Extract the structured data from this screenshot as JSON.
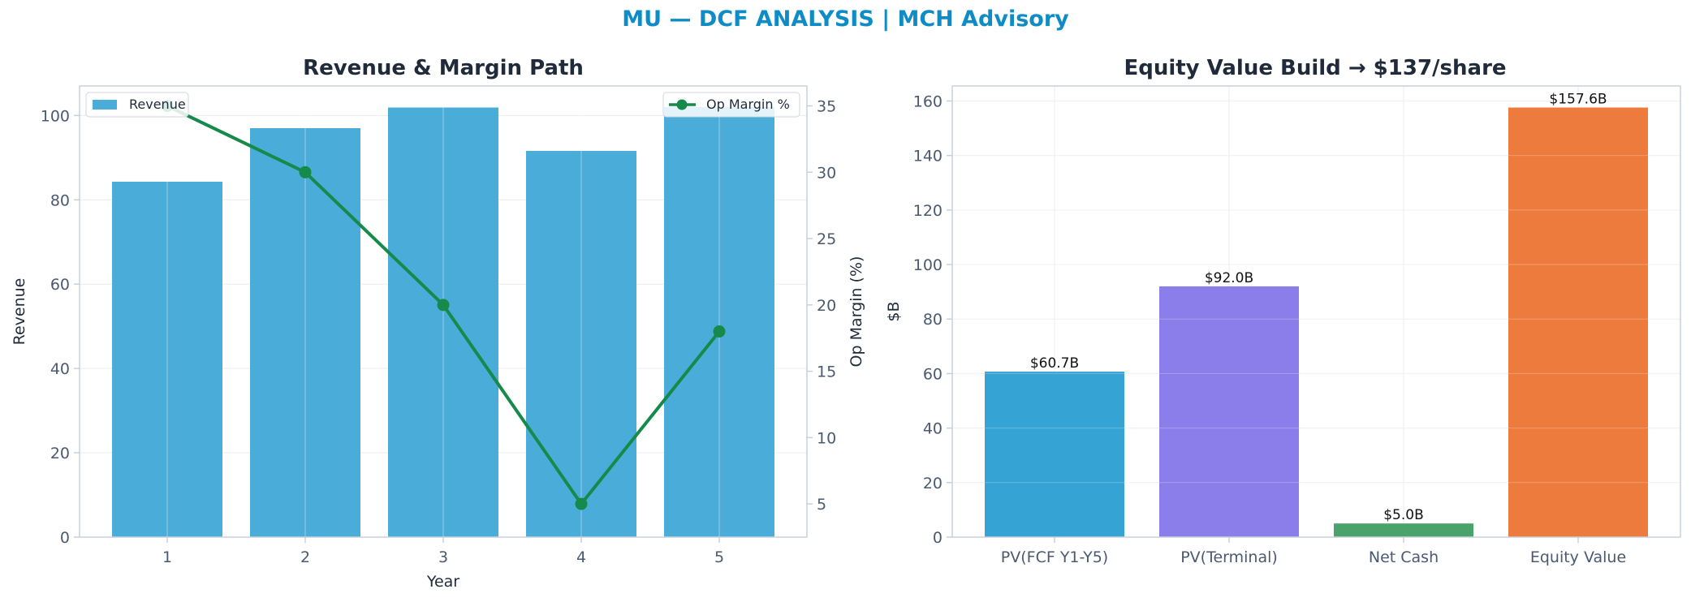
{
  "figure": {
    "suptitle": "MU — DCF ANALYSIS | MCH Advisory"
  },
  "colors": {
    "title": "#0f8cc6",
    "axis_title": "#1f2a3a",
    "tick": "#4a5a70",
    "label": "#1f2a3a",
    "spine": "#c8d0dc",
    "grid": "#e8ecf2",
    "revenue_bar": "#4aacd8",
    "margin_line": "#168a4a"
  },
  "chart_data": [
    {
      "type": "bar",
      "title": "Revenue & Margin Path",
      "xlabel": "Year",
      "ylabel": "Revenue",
      "y2label": "Op Margin (%)",
      "categories": [
        "1",
        "2",
        "3",
        "4",
        "5"
      ],
      "ylim": [
        0,
        107
      ],
      "yticks": [
        0,
        20,
        40,
        60,
        80,
        100
      ],
      "y2lim": [
        2.5,
        36.5
      ],
      "y2ticks": [
        5,
        10,
        15,
        20,
        25,
        30,
        35
      ],
      "grid": true,
      "series": [
        {
          "name": "Revenue",
          "type": "bar",
          "axis": "left",
          "values": [
            84.3,
            97.0,
            101.9,
            91.6,
            102.0
          ]
        },
        {
          "name": "Op Margin %",
          "type": "line",
          "axis": "right",
          "values": [
            35,
            30,
            20,
            5,
            18
          ]
        }
      ],
      "legends": [
        {
          "entries": [
            "Revenue"
          ],
          "placement": "upper-left"
        },
        {
          "entries": [
            "Op Margin %"
          ],
          "placement": "upper-right"
        }
      ]
    },
    {
      "type": "bar",
      "title": "Equity Value Build → $137/share",
      "xlabel": "",
      "ylabel": "$B",
      "categories": [
        "PV(FCF Y1-Y5)",
        "PV(Terminal)",
        "Net Cash",
        "Equity Value"
      ],
      "values": [
        60.7,
        92.0,
        5.0,
        157.6
      ],
      "labels": [
        "$60.7B",
        "$92.0B",
        "$5.0B",
        "$157.6B"
      ],
      "colors": [
        "#35a3d4",
        "#8b7eea",
        "#4aa36a",
        "#ee7b3e"
      ],
      "ylim": [
        0,
        165.5
      ],
      "yticks": [
        0,
        20,
        40,
        60,
        80,
        100,
        120,
        140,
        160
      ],
      "grid": true
    }
  ]
}
